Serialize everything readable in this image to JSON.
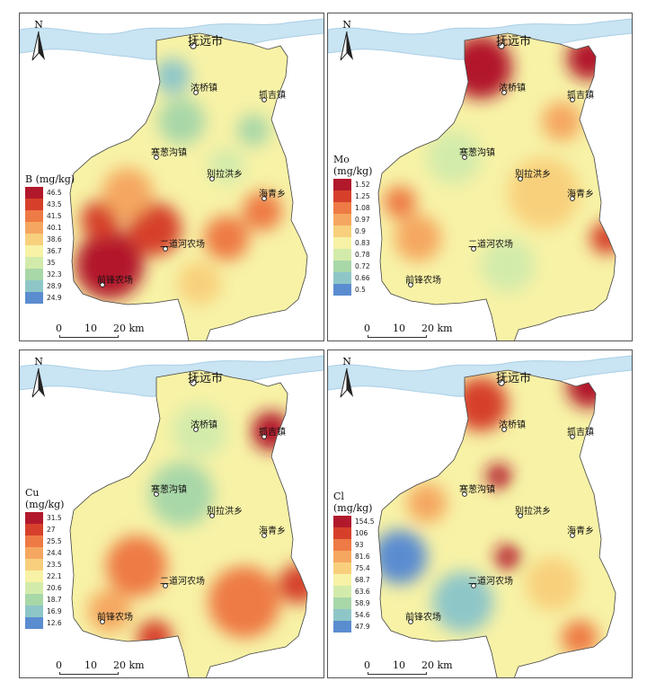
{
  "panels": [
    {
      "element": "B",
      "legend_title": "B (mg/kg)",
      "legend_ticks": [
        "46.5",
        "43.5",
        "41.5",
        "40.1",
        "38.6",
        "36.7",
        "35",
        "32.3",
        "28.9",
        "24.9"
      ],
      "highlight": "southwest"
    },
    {
      "element": "Mo",
      "legend_title": "Mo\n(mg/kg)",
      "legend_ticks": [
        "1.52",
        "1.25",
        "1.08",
        "0.97",
        "0.9",
        "0.83",
        "0.78",
        "0.72",
        "0.66",
        "0.5"
      ],
      "highlight": "north"
    },
    {
      "element": "Cu",
      "legend_title": "Cu\n(mg/kg)",
      "legend_ticks": [
        "31.5",
        "27",
        "25.5",
        "24.4",
        "23.5",
        "22.1",
        "20.6",
        "18.7",
        "16.9",
        "12.6"
      ],
      "highlight": "south"
    },
    {
      "element": "Cl",
      "legend_title": "Cl\n(mg/kg)",
      "legend_ticks": [
        "154.5",
        "106",
        "93",
        "81.6",
        "75.4",
        "68.7",
        "63.6",
        "58.9",
        "54.6",
        "47.9"
      ],
      "highlight": "north"
    }
  ],
  "places": {
    "fuyuan": "抚远市",
    "nongqiao": "浓桥镇",
    "zhuaji": "抓吉镇",
    "hancong": "寒葱沟镇",
    "bielahong": "别拉洪乡",
    "haiqing": "海青乡",
    "erdaohe": "二道河农场",
    "qianfeng": "前锋农场"
  },
  "north_label": "N",
  "scale": {
    "t0": "0",
    "t1": "10",
    "t2": "20 km"
  },
  "colors": {
    "ramp": [
      "#b2182b",
      "#d6402b",
      "#ee7a45",
      "#f5a760",
      "#f8d07c",
      "#f7f2a6",
      "#d3ebaa",
      "#a8d7a8",
      "#8ec6c8",
      "#5a8cd0"
    ],
    "river": "#c9e4f2"
  }
}
